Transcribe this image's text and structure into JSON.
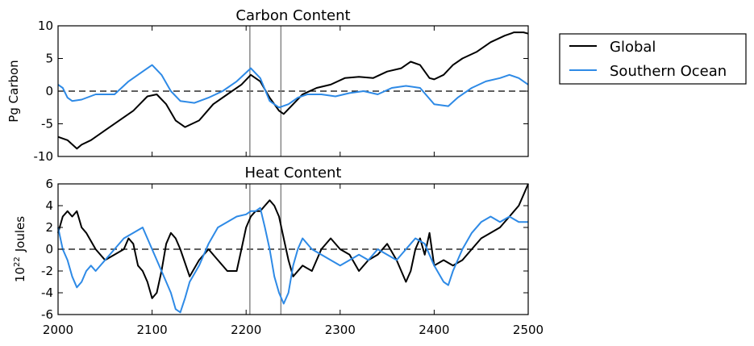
{
  "colors": {
    "global": "#000000",
    "southern": "#2e8ae6",
    "vline": "#808080",
    "zero": "#000000"
  },
  "legend": {
    "items": [
      "Global",
      "Southern Ocean"
    ],
    "placement": "right-outside"
  },
  "chart_data": [
    {
      "type": "line",
      "title": "Carbon Content",
      "xlabel": "",
      "ylabel": "Pg Carbon",
      "xlim": [
        2000,
        2500
      ],
      "ylim": [
        -10,
        10
      ],
      "yticks": [
        -10,
        -5,
        0,
        5,
        10
      ],
      "xticks": [
        2000,
        2100,
        2200,
        2300,
        2400,
        2500
      ],
      "show_xtick_labels": false,
      "zero_line": 0,
      "vlines": [
        2204,
        2237
      ],
      "series": [
        {
          "name": "Global",
          "x": [
            2000,
            2010,
            2020,
            2025,
            2035,
            2050,
            2065,
            2080,
            2095,
            2105,
            2115,
            2125,
            2135,
            2150,
            2165,
            2180,
            2195,
            2205,
            2215,
            2225,
            2235,
            2240,
            2250,
            2260,
            2275,
            2290,
            2305,
            2320,
            2335,
            2350,
            2365,
            2375,
            2385,
            2395,
            2400,
            2410,
            2420,
            2430,
            2445,
            2460,
            2475,
            2485,
            2495,
            2500
          ],
          "y": [
            -7,
            -7.5,
            -8.8,
            -8.2,
            -7.5,
            -6,
            -4.5,
            -3,
            -0.8,
            -0.5,
            -2,
            -4.5,
            -5.5,
            -4.5,
            -2,
            -0.5,
            1,
            2.5,
            1.5,
            -1,
            -3,
            -3.5,
            -2,
            -0.5,
            0.5,
            1,
            2,
            2.2,
            2,
            3,
            3.5,
            4.5,
            4,
            2,
            1.8,
            2.5,
            4,
            5,
            6,
            7.5,
            8.5,
            9,
            9,
            8.8
          ]
        },
        {
          "name": "Southern Ocean",
          "x": [
            2000,
            2005,
            2010,
            2015,
            2025,
            2040,
            2060,
            2075,
            2090,
            2100,
            2110,
            2120,
            2130,
            2145,
            2160,
            2175,
            2190,
            2205,
            2215,
            2225,
            2235,
            2245,
            2255,
            2265,
            2280,
            2295,
            2310,
            2325,
            2340,
            2355,
            2370,
            2385,
            2400,
            2415,
            2425,
            2440,
            2455,
            2470,
            2480,
            2490,
            2500
          ],
          "y": [
            1,
            0.5,
            -1,
            -1.5,
            -1.3,
            -0.5,
            -0.5,
            1.5,
            3,
            4,
            2.5,
            0,
            -1.5,
            -1.8,
            -1,
            0,
            1.5,
            3.5,
            2,
            -1.5,
            -2.5,
            -2,
            -1,
            -0.5,
            -0.5,
            -0.8,
            -0.3,
            0,
            -0.5,
            0.5,
            0.8,
            0.5,
            -2,
            -2.3,
            -1,
            0.5,
            1.5,
            2,
            2.5,
            2,
            1
          ]
        }
      ]
    },
    {
      "type": "line",
      "title": "Heat Content",
      "xlabel": "",
      "ylabel": "Joules",
      "ylabel_prefix": "10",
      "ylabel_exponent": "22",
      "xlim": [
        2000,
        2500
      ],
      "ylim": [
        -6,
        6
      ],
      "yticks": [
        -6,
        -4,
        -2,
        0,
        2,
        4,
        6
      ],
      "xticks": [
        2000,
        2100,
        2200,
        2300,
        2400,
        2500
      ],
      "show_xtick_labels": true,
      "zero_line": 0,
      "vlines": [
        2204,
        2237
      ],
      "series": [
        {
          "name": "Global",
          "x": [
            2000,
            2005,
            2010,
            2015,
            2020,
            2025,
            2030,
            2040,
            2050,
            2060,
            2070,
            2075,
            2080,
            2085,
            2090,
            2095,
            2100,
            2105,
            2110,
            2115,
            2120,
            2125,
            2130,
            2140,
            2150,
            2160,
            2170,
            2180,
            2190,
            2195,
            2200,
            2205,
            2210,
            2215,
            2220,
            2225,
            2230,
            2235,
            2240,
            2245,
            2250,
            2260,
            2270,
            2280,
            2290,
            2300,
            2310,
            2320,
            2330,
            2340,
            2350,
            2360,
            2370,
            2375,
            2380,
            2385,
            2390,
            2395,
            2400,
            2410,
            2420,
            2430,
            2440,
            2450,
            2460,
            2470,
            2480,
            2490,
            2495,
            2500
          ],
          "y": [
            1.5,
            3,
            3.5,
            3,
            3.5,
            2,
            1.5,
            0,
            -1,
            -0.5,
            0,
            1,
            0.5,
            -1.5,
            -2,
            -3,
            -4.5,
            -4,
            -2,
            0.5,
            1.5,
            1,
            0,
            -2.5,
            -1,
            0,
            -1,
            -2,
            -2,
            0,
            2,
            3,
            3.5,
            3.5,
            4,
            4.5,
            4,
            3,
            1,
            -1,
            -2.5,
            -1.5,
            -2,
            0,
            1,
            0,
            -0.5,
            -2,
            -1,
            -0.5,
            0.5,
            -1,
            -3,
            -2,
            0,
            1,
            -0.5,
            1.5,
            -1.5,
            -1,
            -1.5,
            -1,
            0,
            1,
            1.5,
            2,
            3,
            4,
            5,
            6
          ]
        },
        {
          "name": "Southern Ocean",
          "x": [
            2000,
            2005,
            2010,
            2015,
            2020,
            2025,
            2030,
            2035,
            2040,
            2050,
            2060,
            2070,
            2080,
            2090,
            2100,
            2110,
            2120,
            2125,
            2130,
            2135,
            2140,
            2150,
            2160,
            2170,
            2180,
            2190,
            2200,
            2205,
            2210,
            2215,
            2220,
            2225,
            2230,
            2235,
            2240,
            2245,
            2250,
            2255,
            2260,
            2270,
            2280,
            2290,
            2300,
            2310,
            2320,
            2330,
            2340,
            2350,
            2360,
            2370,
            2380,
            2390,
            2400,
            2410,
            2415,
            2420,
            2430,
            2440,
            2450,
            2460,
            2470,
            2480,
            2490,
            2500
          ],
          "y": [
            2,
            0,
            -1,
            -2.5,
            -3.5,
            -3,
            -2,
            -1.5,
            -2,
            -1,
            0,
            1,
            1.5,
            2,
            0,
            -2,
            -4,
            -5.5,
            -5.8,
            -4.5,
            -3,
            -1.5,
            0.5,
            2,
            2.5,
            3,
            3.2,
            3.5,
            3.5,
            3.8,
            2,
            0,
            -2.5,
            -4,
            -5,
            -4,
            -1.5,
            0,
            1,
            0,
            -0.5,
            -1,
            -1.5,
            -1,
            -0.5,
            -1,
            0,
            -0.5,
            -1,
            0,
            1,
            0.5,
            -1.5,
            -3,
            -3.3,
            -2,
            0,
            1.5,
            2.5,
            3,
            2.5,
            3,
            2.5,
            2.5
          ]
        }
      ]
    }
  ]
}
